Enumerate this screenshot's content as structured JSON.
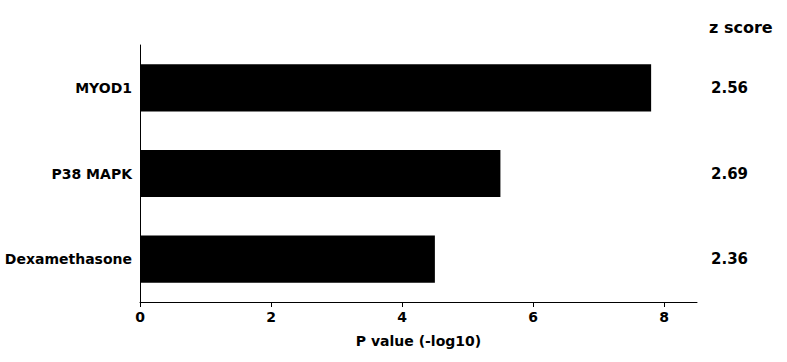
{
  "chart_data": {
    "type": "bar",
    "orientation": "horizontal",
    "categories": [
      "Dexamethasone",
      "P38 MAPK",
      "MYOD1"
    ],
    "values": [
      4.5,
      5.5,
      7.8
    ],
    "color": "#000000",
    "xlabel": "P value (-log10)",
    "xlim": [
      0,
      8.5
    ],
    "xticks": [
      0,
      2,
      4,
      6,
      8
    ],
    "grid": false,
    "z_scores": [
      "2.36",
      "2.69",
      "2.56"
    ],
    "z_score_label": "z score"
  }
}
